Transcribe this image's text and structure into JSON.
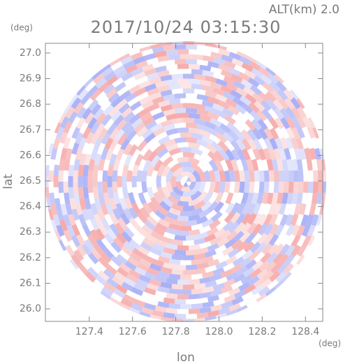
{
  "chart_data": {
    "type": "image",
    "title": "2017/10/24 03:15:30",
    "subtitle": "ALT(km) 2.0",
    "xlabel": "lon",
    "ylabel": "lat",
    "xunit": "(deg)",
    "yunit": "(deg)",
    "xlim": [
      127.197,
      128.48
    ],
    "ylim": [
      25.951,
      27.038
    ],
    "xticks": [
      127.4,
      127.6,
      127.8,
      {
        "value": 128.0,
        "label": "128.0"
      },
      128.2,
      128.4
    ],
    "yticks": [
      {
        "value": 26.0,
        "label": "26.0"
      },
      26.1,
      26.2,
      26.3,
      26.4,
      26.5,
      26.6,
      26.7,
      26.8,
      26.9,
      {
        "value": 27.0,
        "label": "27.0"
      }
    ],
    "colors": [
      "#f49a9a",
      "#9aa2f4"
    ]
  }
}
